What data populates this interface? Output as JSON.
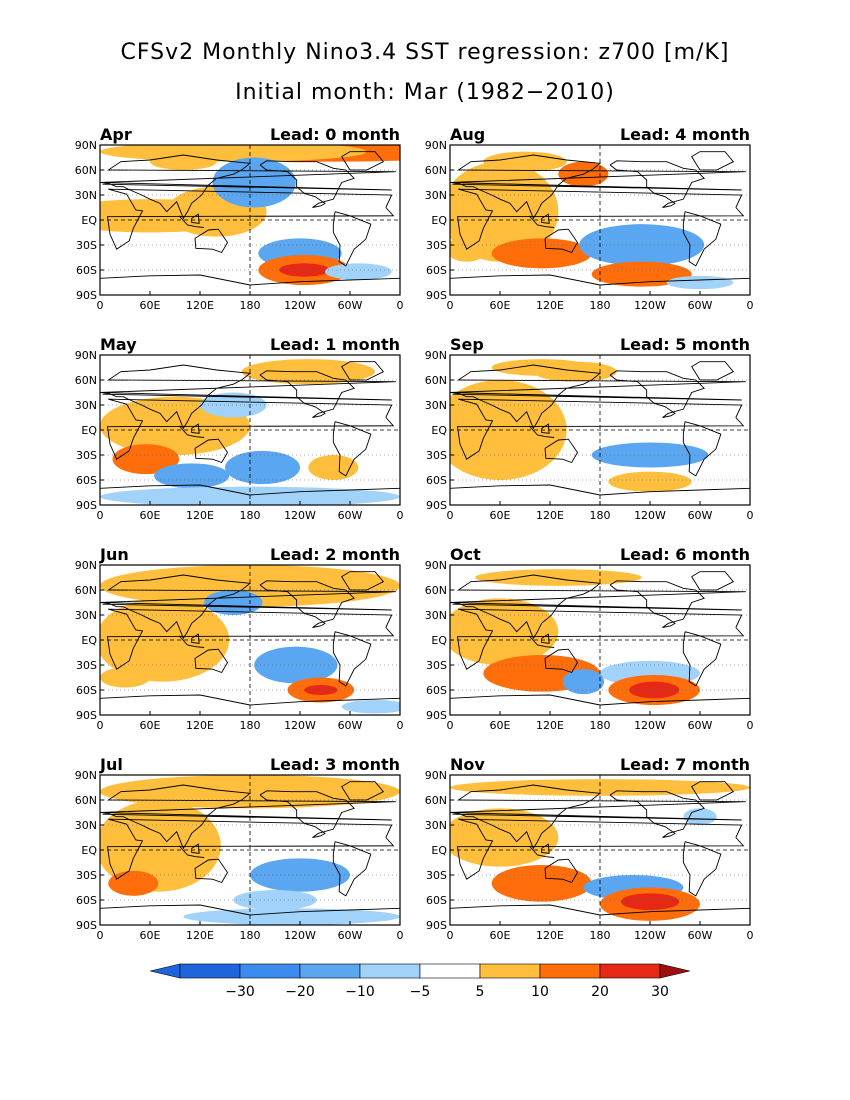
{
  "title": {
    "line1": "CFSv2 Monthly Nino3.4 SST regression: z700 [m/K]",
    "line2": "Initial month: Mar (1982−2010)"
  },
  "axes": {
    "lat_labels": [
      "90N",
      "60N",
      "30N",
      "EQ",
      "30S",
      "60S",
      "90S"
    ],
    "lon_labels": [
      "0",
      "60E",
      "120E",
      "180",
      "120W",
      "60W",
      "0"
    ]
  },
  "colors": {
    "neg30": "#1e64dc",
    "neg20": "#3c8cf0",
    "neg10": "#5aa6f0",
    "neg5": "#a0d2fa",
    "pos5": "#ffbe3c",
    "pos10": "#ff6e0a",
    "pos20": "#e62814",
    "pos30": "#a00f0f",
    "coast": "#000000"
  },
  "colorbar": {
    "levels": [
      "−30",
      "−20",
      "−10",
      "−5",
      "5",
      "10",
      "20",
      "30"
    ]
  },
  "panels": [
    {
      "month": "Apr",
      "lead": "Lead: 0 month",
      "blobs": [
        {
          "lon": 270,
          "lat": 82,
          "w": 200,
          "h": 12,
          "v": 10
        },
        {
          "lon": 160,
          "lat": 82,
          "w": 160,
          "h": 12,
          "v": 5
        },
        {
          "lon": 60,
          "lat": 5,
          "w": 120,
          "h": 20,
          "v": 5
        },
        {
          "lon": 140,
          "lat": 10,
          "w": 60,
          "h": 30,
          "v": 5
        },
        {
          "lon": 185,
          "lat": 45,
          "w": 50,
          "h": 30,
          "v": -10
        },
        {
          "lon": 240,
          "lat": -40,
          "w": 50,
          "h": 18,
          "v": -10
        },
        {
          "lon": 245,
          "lat": -60,
          "w": 55,
          "h": 18,
          "v": 10
        },
        {
          "lon": 245,
          "lat": -60,
          "w": 30,
          "h": 8,
          "v": 20
        },
        {
          "lon": 310,
          "lat": -62,
          "w": 40,
          "h": 10,
          "v": -5
        },
        {
          "lon": 100,
          "lat": 70,
          "w": 40,
          "h": 10,
          "v": 5
        }
      ]
    },
    {
      "month": "Aug",
      "lead": "Lead: 4 month",
      "blobs": [
        {
          "lon": 60,
          "lat": 10,
          "w": 70,
          "h": 60,
          "v": 5
        },
        {
          "lon": 110,
          "lat": -40,
          "w": 60,
          "h": 18,
          "v": 10
        },
        {
          "lon": 160,
          "lat": 55,
          "w": 30,
          "h": 15,
          "v": 10
        },
        {
          "lon": 230,
          "lat": -30,
          "w": 75,
          "h": 25,
          "v": -10
        },
        {
          "lon": 230,
          "lat": -65,
          "w": 60,
          "h": 15,
          "v": 10
        },
        {
          "lon": 90,
          "lat": 70,
          "w": 50,
          "h": 12,
          "v": 5
        },
        {
          "lon": 300,
          "lat": -75,
          "w": 40,
          "h": 8,
          "v": -5
        },
        {
          "lon": 20,
          "lat": -35,
          "w": 25,
          "h": 15,
          "v": 5
        }
      ]
    },
    {
      "month": "May",
      "lead": "Lead: 1 month",
      "blobs": [
        {
          "lon": 90,
          "lat": 5,
          "w": 90,
          "h": 35,
          "v": 5
        },
        {
          "lon": 55,
          "lat": -35,
          "w": 40,
          "h": 18,
          "v": 10
        },
        {
          "lon": 160,
          "lat": 30,
          "w": 40,
          "h": 15,
          "v": -5
        },
        {
          "lon": 195,
          "lat": -45,
          "w": 45,
          "h": 20,
          "v": -10
        },
        {
          "lon": 110,
          "lat": -55,
          "w": 45,
          "h": 15,
          "v": -10
        },
        {
          "lon": 250,
          "lat": 70,
          "w": 80,
          "h": 15,
          "v": 5
        },
        {
          "lon": 280,
          "lat": -45,
          "w": 30,
          "h": 15,
          "v": 5
        },
        {
          "lon": 180,
          "lat": -80,
          "w": 180,
          "h": 12,
          "v": -5
        }
      ]
    },
    {
      "month": "Sep",
      "lead": "Lead: 5 month",
      "blobs": [
        {
          "lon": 60,
          "lat": 0,
          "w": 80,
          "h": 60,
          "v": 5
        },
        {
          "lon": 150,
          "lat": 70,
          "w": 50,
          "h": 12,
          "v": 5
        },
        {
          "lon": 240,
          "lat": -30,
          "w": 70,
          "h": 15,
          "v": -10
        },
        {
          "lon": 240,
          "lat": -62,
          "w": 50,
          "h": 12,
          "v": 5
        },
        {
          "lon": 110,
          "lat": 75,
          "w": 60,
          "h": 10,
          "v": 5
        }
      ]
    },
    {
      "month": "Jun",
      "lead": "Lead: 2 month",
      "blobs": [
        {
          "lon": 180,
          "lat": 65,
          "w": 180,
          "h": 25,
          "v": 5
        },
        {
          "lon": 75,
          "lat": 0,
          "w": 80,
          "h": 50,
          "v": 5
        },
        {
          "lon": 160,
          "lat": 45,
          "w": 35,
          "h": 15,
          "v": -10
        },
        {
          "lon": 235,
          "lat": -30,
          "w": 50,
          "h": 22,
          "v": -10
        },
        {
          "lon": 265,
          "lat": -60,
          "w": 40,
          "h": 15,
          "v": 10
        },
        {
          "lon": 265,
          "lat": -60,
          "w": 20,
          "h": 6,
          "v": 20
        },
        {
          "lon": 330,
          "lat": -80,
          "w": 40,
          "h": 8,
          "v": -5
        },
        {
          "lon": 30,
          "lat": -45,
          "w": 30,
          "h": 12,
          "v": 5
        }
      ]
    },
    {
      "month": "Oct",
      "lead": "Lead: 6 month",
      "blobs": [
        {
          "lon": 60,
          "lat": 10,
          "w": 70,
          "h": 40,
          "v": 5
        },
        {
          "lon": 110,
          "lat": -40,
          "w": 70,
          "h": 22,
          "v": 10
        },
        {
          "lon": 240,
          "lat": -40,
          "w": 60,
          "h": 15,
          "v": -5
        },
        {
          "lon": 245,
          "lat": -60,
          "w": 55,
          "h": 18,
          "v": 10
        },
        {
          "lon": 245,
          "lat": -60,
          "w": 30,
          "h": 10,
          "v": 20
        },
        {
          "lon": 160,
          "lat": -50,
          "w": 25,
          "h": 15,
          "v": -10
        },
        {
          "lon": 130,
          "lat": 75,
          "w": 100,
          "h": 10,
          "v": 5
        }
      ]
    },
    {
      "month": "Jul",
      "lead": "Lead: 3 month",
      "blobs": [
        {
          "lon": 180,
          "lat": 70,
          "w": 180,
          "h": 20,
          "v": 5
        },
        {
          "lon": 70,
          "lat": 5,
          "w": 75,
          "h": 55,
          "v": 5
        },
        {
          "lon": 40,
          "lat": -40,
          "w": 30,
          "h": 15,
          "v": 10
        },
        {
          "lon": 240,
          "lat": -30,
          "w": 60,
          "h": 20,
          "v": -10
        },
        {
          "lon": 210,
          "lat": -60,
          "w": 50,
          "h": 12,
          "v": -5
        },
        {
          "lon": 230,
          "lat": -80,
          "w": 130,
          "h": 10,
          "v": -5
        }
      ]
    },
    {
      "month": "Nov",
      "lead": "Lead: 7 month",
      "blobs": [
        {
          "lon": 60,
          "lat": 15,
          "w": 70,
          "h": 35,
          "v": 5
        },
        {
          "lon": 110,
          "lat": -40,
          "w": 60,
          "h": 22,
          "v": 10
        },
        {
          "lon": 220,
          "lat": -45,
          "w": 60,
          "h": 15,
          "v": -10
        },
        {
          "lon": 240,
          "lat": -65,
          "w": 60,
          "h": 20,
          "v": 10
        },
        {
          "lon": 240,
          "lat": -62,
          "w": 35,
          "h": 10,
          "v": 20
        },
        {
          "lon": 300,
          "lat": 40,
          "w": 20,
          "h": 10,
          "v": -5
        },
        {
          "lon": 180,
          "lat": 75,
          "w": 180,
          "h": 10,
          "v": 5
        }
      ]
    }
  ]
}
